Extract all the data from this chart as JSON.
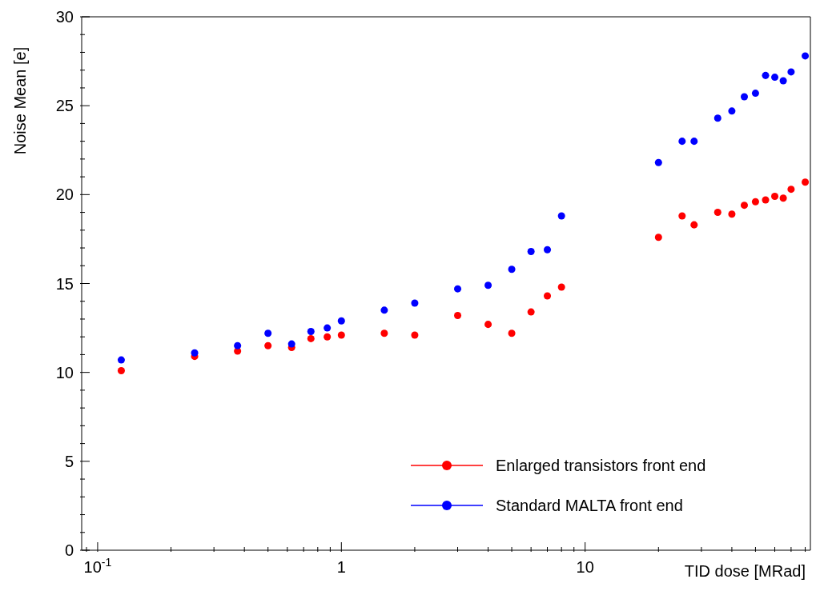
{
  "chart_data": {
    "type": "scatter",
    "xlabel": "TID dose [MRad]",
    "ylabel": "Noise Mean [e]",
    "log": "x",
    "marker": "circle",
    "legend": "bottom right",
    "grid": false,
    "xlim": [
      0.086,
      84
    ],
    "ylim": [
      0,
      30
    ],
    "xticks": [
      {
        "value": 0.09,
        "label": null
      },
      {
        "value": 0.1,
        "label": "10$^{-1}$"
      },
      {
        "value": 0.2,
        "label": null
      },
      {
        "value": 0.3,
        "label": null
      },
      {
        "value": 0.4,
        "label": null
      },
      {
        "value": 0.5,
        "label": null
      },
      {
        "value": 0.6,
        "label": null
      },
      {
        "value": 0.7,
        "label": null
      },
      {
        "value": 0.8,
        "label": null
      },
      {
        "value": 0.9,
        "label": null
      },
      1,
      {
        "value": 2,
        "label": null
      },
      {
        "value": 3,
        "label": null
      },
      {
        "value": 4,
        "label": null
      },
      {
        "value": 5,
        "label": null
      },
      {
        "value": 6,
        "label": null
      },
      {
        "value": 7,
        "label": null
      },
      {
        "value": 8,
        "label": null
      },
      {
        "value": 9,
        "label": null
      },
      10,
      {
        "value": 20,
        "label": null
      },
      {
        "value": 30,
        "label": null
      },
      {
        "value": 40,
        "label": null
      },
      {
        "value": 50,
        "label": null
      },
      {
        "value": 60,
        "label": null
      },
      {
        "value": 70,
        "label": null
      },
      {
        "value": 80,
        "label": null
      }
    ],
    "yticks": [
      0,
      {
        "value": 1,
        "label": null
      },
      {
        "value": 2,
        "label": null
      },
      {
        "value": 3,
        "label": null
      },
      {
        "value": 4,
        "label": null
      },
      5,
      {
        "value": 6,
        "label": null
      },
      {
        "value": 7,
        "label": null
      },
      {
        "value": 8,
        "label": null
      },
      {
        "value": 9,
        "label": null
      },
      10,
      {
        "value": 11,
        "label": null
      },
      {
        "value": 12,
        "label": null
      },
      {
        "value": 13,
        "label": null
      },
      {
        "value": 14,
        "label": null
      },
      15,
      {
        "value": 16,
        "label": null
      },
      {
        "value": 17,
        "label": null
      },
      {
        "value": 18,
        "label": null
      },
      {
        "value": 19,
        "label": null
      },
      20,
      {
        "value": 21,
        "label": null
      },
      {
        "value": 22,
        "label": null
      },
      {
        "value": 23,
        "label": null
      },
      {
        "value": 24,
        "label": null
      },
      25,
      {
        "value": 26,
        "label": null
      },
      {
        "value": 27,
        "label": null
      },
      {
        "value": 28,
        "label": null
      },
      {
        "value": 29,
        "label": null
      },
      30
    ],
    "x": [
      0.125,
      0.25,
      0.375,
      0.5,
      0.625,
      0.75,
      0.875,
      1,
      1.5,
      2,
      3,
      4,
      5,
      6,
      7,
      8,
      20,
      25,
      28,
      35,
      40,
      45,
      50,
      55,
      60,
      65,
      70,
      80
    ],
    "series": [
      {
        "name": "Enlarged transistors front end",
        "color": "#ff0000",
        "values": [
          10.1,
          10.9,
          11.2,
          11.5,
          11.4,
          11.9,
          12.0,
          12.1,
          12.2,
          12.1,
          13.2,
          12.7,
          12.2,
          13.4,
          14.3,
          14.8,
          17.6,
          18.8,
          18.3,
          19.0,
          18.9,
          19.4,
          19.6,
          19.7,
          19.9,
          19.8,
          20.3,
          20.7
        ]
      },
      {
        "name": "Standard MALTA front end",
        "color": "#0000ff",
        "values": [
          10.7,
          11.1,
          11.5,
          12.2,
          11.6,
          12.3,
          12.5,
          12.9,
          13.5,
          13.9,
          14.7,
          14.9,
          15.8,
          16.8,
          16.9,
          18.8,
          21.8,
          23.0,
          23.0,
          24.3,
          24.7,
          25.5,
          25.7,
          26.7,
          26.6,
          26.4,
          26.9,
          27.8
        ]
      }
    ]
  }
}
